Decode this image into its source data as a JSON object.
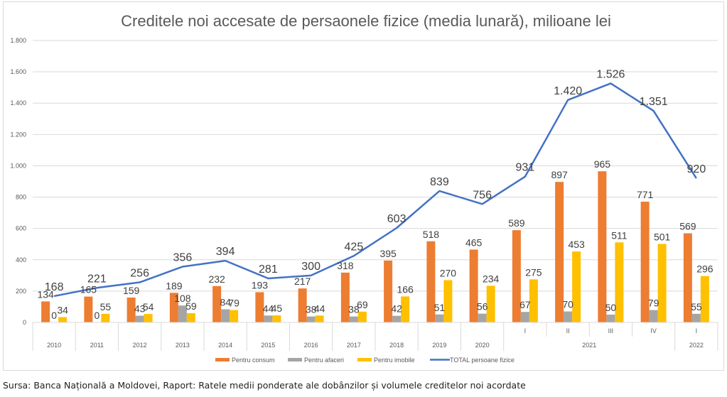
{
  "chart_data": {
    "type": "bar",
    "title": "Creditele noi accesate de persaonele fizice (media lunară), milioane lei",
    "xlabel": "",
    "ylabel": "",
    "ylim": [
      0,
      1800
    ],
    "yticks": [
      0,
      200,
      400,
      600,
      800,
      1000,
      1200,
      1400,
      1600,
      1800
    ],
    "ytick_labels": [
      "0",
      "200",
      "400",
      "600",
      "800",
      "1.000",
      "1.200",
      "1.400",
      "1.600",
      "1.800"
    ],
    "grid": true,
    "legend_position": "bottom",
    "categories": [
      "2010",
      "2011",
      "2012",
      "2013",
      "2014",
      "2015",
      "2016",
      "2017",
      "2018",
      "2019",
      "2020",
      "I",
      "II",
      "III",
      "IV",
      "I"
    ],
    "category_groups": [
      {
        "label": "2021",
        "categories": [
          "I",
          "II",
          "III",
          "IV"
        ]
      },
      {
        "label": "2022",
        "categories": [
          "I"
        ]
      }
    ],
    "series": [
      {
        "name": "Pentru consum",
        "type": "bar",
        "color": "#ED7D31",
        "values": [
          134,
          165,
          159,
          189,
          232,
          193,
          217,
          318,
          395,
          518,
          465,
          589,
          897,
          965,
          771,
          569
        ]
      },
      {
        "name": "Pentru afaceri",
        "type": "bar",
        "color": "#A5A5A5",
        "values": [
          0,
          0,
          43,
          108,
          84,
          44,
          38,
          38,
          42,
          51,
          56,
          67,
          70,
          50,
          79,
          55
        ]
      },
      {
        "name": "Pentru imobile",
        "type": "bar",
        "color": "#FFC000",
        "values": [
          34,
          55,
          54,
          59,
          79,
          45,
          44,
          69,
          166,
          270,
          234,
          275,
          453,
          511,
          501,
          296
        ]
      },
      {
        "name": "TOTAL persoane fizice",
        "type": "line",
        "color": "#4472C4",
        "values": [
          168,
          221,
          256,
          356,
          394,
          281,
          300,
          425,
          603,
          839,
          756,
          931,
          1420,
          1526,
          1351,
          920
        ],
        "value_labels": [
          "168",
          "221",
          "256",
          "356",
          "394",
          "281",
          "300",
          "425",
          "603",
          "839",
          "756",
          "931",
          "1.420",
          "1.526",
          "1.351",
          "920"
        ]
      }
    ]
  },
  "source": "Sursa: Banca Națională a Moldovei, Raport: Ratele medii ponderate ale dobânzilor și volumele creditelor noi acordate"
}
